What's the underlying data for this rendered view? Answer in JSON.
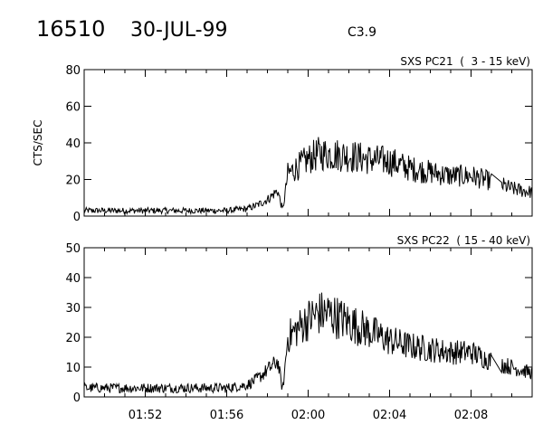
{
  "header": {
    "event_id": "16510",
    "date": "30-JUL-99",
    "flare_class": "C3.9"
  },
  "chart_data": [
    {
      "type": "line",
      "title": "SXS PC21  (  3 - 15 keV)",
      "ylabel": "CTS/SEC",
      "xlabel": "",
      "ylim": [
        0,
        80
      ],
      "yticks": [
        0,
        20,
        40,
        60,
        80
      ],
      "xlim": [
        "01:49",
        "02:11"
      ],
      "xticks": [
        "01:52",
        "01:56",
        "02:00",
        "02:04",
        "02:08"
      ],
      "grid": false,
      "series": [
        {
          "x": [
            "01:49",
            "01:50",
            "01:51",
            "01:52",
            "01:53",
            "01:54",
            "01:55",
            "01:56",
            "01:57",
            "01:57:30",
            "01:58",
            "01:58:30",
            "01:58:45",
            "01:59",
            "01:59:30",
            "02:00",
            "02:00:30",
            "02:01",
            "02:02",
            "02:03",
            "02:04",
            "02:05",
            "02:06",
            "02:07",
            "02:08",
            "02:09",
            "02:09:30",
            "02:10",
            "02:11"
          ],
          "y": [
            3,
            3,
            3,
            3,
            3,
            3,
            3,
            3,
            4,
            6,
            9,
            14,
            3,
            23,
            27,
            31,
            34,
            34,
            33,
            31,
            30,
            26,
            24,
            22,
            22,
            19,
            17,
            15,
            13
          ]
        }
      ]
    },
    {
      "type": "line",
      "title": "SXS PC22  ( 15 - 40 keV)",
      "ylabel": "",
      "xlabel": "",
      "ylim": [
        0,
        50
      ],
      "yticks": [
        0,
        10,
        20,
        30,
        40,
        50
      ],
      "xlim": [
        "01:49",
        "02:11"
      ],
      "xticks": [
        "01:52",
        "01:56",
        "02:00",
        "02:04",
        "02:08"
      ],
      "grid": false,
      "series": [
        {
          "x": [
            "01:49",
            "01:50",
            "01:51",
            "01:52",
            "01:53",
            "01:54",
            "01:55",
            "01:56",
            "01:57",
            "01:57:30",
            "01:58",
            "01:58:30",
            "01:58:45",
            "01:59",
            "01:59:30",
            "02:00",
            "02:00:30",
            "02:01",
            "02:02",
            "02:03",
            "02:04",
            "02:05",
            "02:06",
            "02:07",
            "02:08",
            "02:09",
            "02:09:30",
            "02:10",
            "02:11"
          ],
          "y": [
            3,
            3,
            3,
            3,
            3,
            3,
            3,
            3,
            4,
            6,
            9,
            12,
            2,
            20,
            23,
            26,
            28,
            28,
            25,
            22,
            19,
            17,
            16,
            15,
            15,
            12,
            11,
            10,
            8
          ]
        }
      ]
    }
  ]
}
